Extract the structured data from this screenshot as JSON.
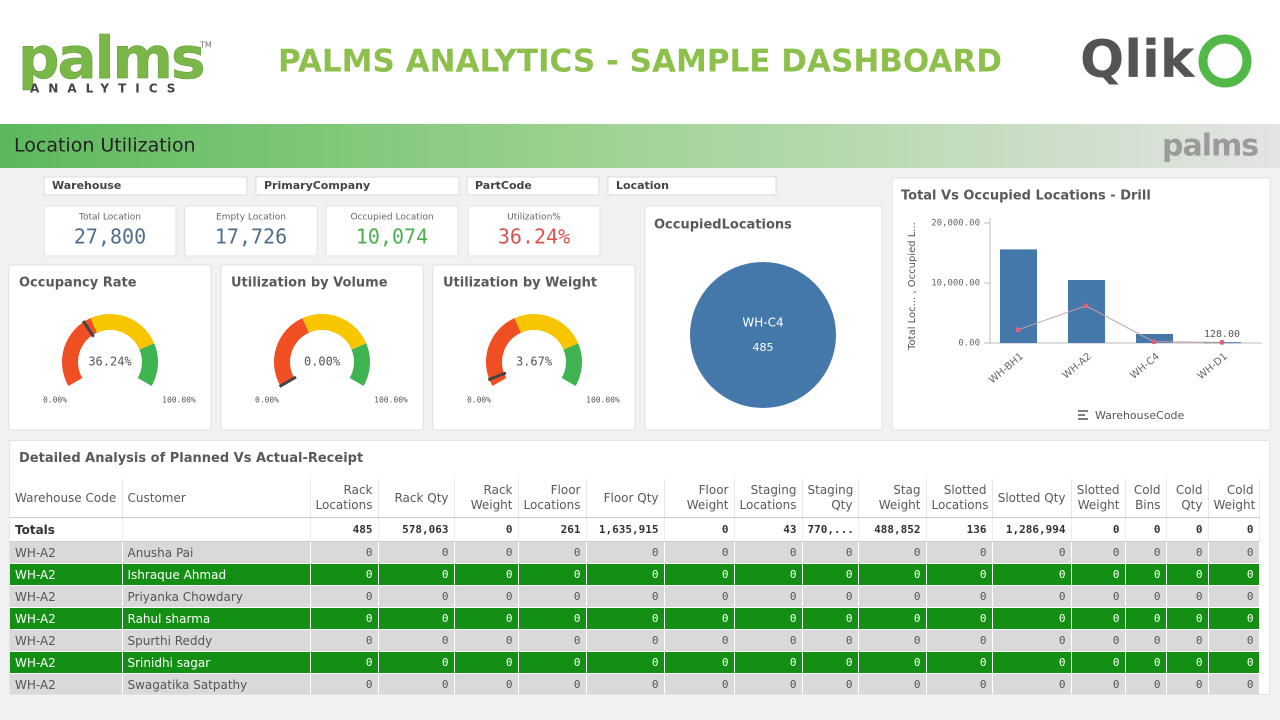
{
  "header": {
    "logo": "palms",
    "logo_tm": "TM",
    "logo_sub": "ANALYTICS",
    "title": "PALMS ANALYTICS - SAMPLE DASHBOARD",
    "brand": "Qlik"
  },
  "sheet": {
    "title": "Location Utilization",
    "logo": "palms"
  },
  "filters": [
    "Warehouse",
    "PrimaryCompany",
    "PartCode",
    "Location"
  ],
  "kpis": [
    {
      "label": "Total Location",
      "value": "27,800",
      "color": "#4f6d8f"
    },
    {
      "label": "Empty Location",
      "value": "17,726",
      "color": "#4f6d8f"
    },
    {
      "label": "Occupied Location",
      "value": "10,074",
      "color": "#4cae4c"
    },
    {
      "label": "Utilization%",
      "value": "36.24%",
      "color": "#d9534f"
    }
  ],
  "gauge_bands": [
    {
      "from": 0,
      "to": 40,
      "color": "#f04e23"
    },
    {
      "from": 40,
      "to": 78,
      "color": "#f7c600"
    },
    {
      "from": 78,
      "to": 100,
      "color": "#3fb34f"
    }
  ],
  "gauges": [
    {
      "title": "Occupancy Rate",
      "value": 36.24,
      "value_label": "36.24%",
      "range": [
        {
          "value": 0,
          "label": "0.00%"
        },
        {
          "value": 100,
          "label": "100.00%"
        }
      ]
    },
    {
      "title": "Utilization by Volume",
      "value": 0,
      "value_label": "0.00%",
      "range": [
        {
          "value": 0,
          "label": "0.00%"
        },
        {
          "value": 100,
          "label": "100.00%"
        }
      ]
    },
    {
      "title": "Utilization by Weight",
      "value": 3.67,
      "value_label": "3.67%",
      "range": [
        {
          "value": 0,
          "label": "0.00%"
        },
        {
          "value": 100,
          "label": "100.00%"
        }
      ]
    }
  ],
  "pie": {
    "title": "OccupiedLocations",
    "slices": [
      {
        "label": "WH-C4",
        "value": 485,
        "color": "#4477aa"
      }
    ]
  },
  "bar_chart": {
    "type": "bar",
    "title": "Total Vs Occupied Locations - Drill",
    "y_label": "Total Loc... , Occupied L...",
    "x_label": "WarehouseCode",
    "categories": [
      "WH-BH1",
      "WH-A2",
      "WH-C4",
      "WH-D1"
    ],
    "ylim": [
      0,
      20000
    ],
    "yticks": [
      {
        "value": 0,
        "label": "0.00"
      },
      {
        "value": 10000,
        "label": "10,000.00"
      },
      {
        "value": 20000,
        "label": "20,000.00"
      }
    ],
    "series": [
      {
        "type": "bar",
        "color": "#4477aa",
        "values": [
          15600,
          10500,
          1500,
          128
        ],
        "value_labels": [
          null,
          null,
          null,
          "128.00"
        ]
      },
      {
        "type": "line",
        "color": "#e0607a",
        "values": [
          2200,
          6200,
          200,
          100
        ]
      }
    ]
  },
  "table": {
    "title": "Detailed Analysis of Planned Vs Actual-Receipt",
    "columns": [
      "Warehouse Code",
      "Customer",
      "Rack Locations",
      "Rack Qty",
      "Rack Weight",
      "Floor Locations",
      "Floor Qty",
      "Floor Weight",
      "Staging Locations",
      "Staging Qty",
      "Stag Weight",
      "Slotted Locations",
      "Slotted Qty",
      "Slotted Weight",
      "Cold Bins",
      "Cold Qty",
      "Cold Weight"
    ],
    "totals": [
      "Totals",
      null,
      485,
      "578,063",
      0,
      261,
      "1,635,915",
      0,
      43,
      "770,...",
      "488,852",
      136,
      "1,286,994",
      0,
      0,
      0,
      0
    ],
    "rows": [
      [
        "WH-A2",
        "Anusha Pai",
        0,
        0,
        0,
        0,
        0,
        0,
        0,
        0,
        0,
        0,
        0,
        0,
        0,
        0,
        0
      ],
      [
        "WH-A2",
        "Ishraque Ahmad",
        0,
        0,
        0,
        0,
        0,
        0,
        0,
        0,
        0,
        0,
        0,
        0,
        0,
        0,
        0
      ],
      [
        "WH-A2",
        "Priyanka Chowdary",
        0,
        0,
        0,
        0,
        0,
        0,
        0,
        0,
        0,
        0,
        0,
        0,
        0,
        0,
        0
      ],
      [
        "WH-A2",
        "Rahul sharma",
        0,
        0,
        0,
        0,
        0,
        0,
        0,
        0,
        0,
        0,
        0,
        0,
        0,
        0,
        0
      ],
      [
        "WH-A2",
        "Spurthi Reddy",
        0,
        0,
        0,
        0,
        0,
        0,
        0,
        0,
        0,
        0,
        0,
        0,
        0,
        0,
        0
      ],
      [
        "WH-A2",
        "Srinidhi sagar",
        0,
        0,
        0,
        0,
        0,
        0,
        0,
        0,
        0,
        0,
        0,
        0,
        0,
        0,
        0
      ],
      [
        "WH-A2",
        "Swagatika Satpathy",
        0,
        0,
        0,
        0,
        0,
        0,
        0,
        0,
        0,
        0,
        0,
        0,
        0,
        0,
        0
      ]
    ]
  }
}
